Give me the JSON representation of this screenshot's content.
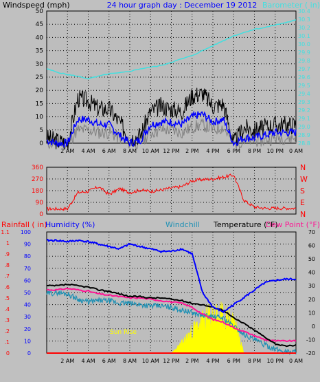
{
  "colors": {
    "background": "#c0c0c0",
    "plot_bg": "#bdbdbd",
    "grid": "#000000",
    "windspeed": "#000000",
    "wind_avg": "#0000ff",
    "wind_gust_low": "#808080",
    "barometer": "#40e0e0",
    "wind_dir": "#ff0000",
    "humidity": "#0000ff",
    "rainfall": "#ff0000",
    "temperature": "#000000",
    "windchill": "#1e90b4",
    "dew_point": "#ff1493",
    "solar": "#ffff00"
  },
  "top": {
    "left_title": "Windspeed (mph)",
    "center_title": "24 hour graph day : December 19 2012",
    "right_title": "Barometer ( in)",
    "left_ticks": [
      "0",
      "5",
      "10",
      "15",
      "20",
      "25",
      "30",
      "35",
      "40",
      "45",
      "50"
    ],
    "right_ticks": [
      "28.8",
      "28.9",
      "29.0",
      "29.1",
      "29.2",
      "29.3",
      "29.4",
      "29.5",
      "29.6",
      "29.7",
      "29.8",
      "29.9",
      "30.0",
      "30.1",
      "30.2",
      "30.3",
      "30.4"
    ],
    "x_ticks": [
      "2 AM",
      "4 AM",
      "6 AM",
      "8 AM",
      "10 AM",
      "12 PM",
      "2 PM",
      "4 PM",
      "6 PM",
      "8 PM",
      "10 PM",
      "0 AM"
    ]
  },
  "middle": {
    "left_ticks": [
      "0",
      "90",
      "180",
      "270",
      "360"
    ],
    "right_labels": [
      "N",
      "W",
      "S",
      "E",
      "N"
    ]
  },
  "bottom": {
    "rain_title": "Rainfall ( in)",
    "humidity_title": "Humidity (%)",
    "windchill_title": "Windchill",
    "temp_title": "Temperature (°F)",
    "dew_title": "Dew Point (°F)",
    "humidity_ticks": [
      "0",
      "10",
      "20",
      "30",
      "40",
      "50",
      "60",
      "70",
      "80",
      "90",
      "100"
    ],
    "rain_ticks": [
      "0",
      ".1",
      ".2",
      ".3",
      ".4",
      ".5",
      ".6",
      ".7",
      ".8",
      ".9",
      "1",
      "1.1"
    ],
    "temp_ticks": [
      "-20",
      "-10",
      "0",
      "10",
      "20",
      "30",
      "40",
      "50",
      "60",
      "70"
    ],
    "x_ticks": [
      "2 AM",
      "4 AM",
      "6 AM",
      "8 AM",
      "10 AM",
      "12 PM",
      "2 PM",
      "4 PM",
      "6 PM",
      "8 PM",
      "10 PM",
      "0 AM"
    ],
    "sunrise_label": "Sun Rise",
    "sunset_label": "Set"
  },
  "chart_data": [
    {
      "type": "line",
      "title": "24 hour graph day : December 19 2012",
      "xlabel": "",
      "x": [
        0,
        1,
        2,
        3,
        4,
        5,
        6,
        7,
        8,
        9,
        10,
        11,
        12,
        13,
        14,
        15,
        16,
        17,
        18,
        19,
        20,
        21,
        22,
        23,
        24
      ],
      "x_tick_labels": [
        "2 AM",
        "4 AM",
        "6 AM",
        "8 AM",
        "10 AM",
        "12 PM",
        "2 PM",
        "4 PM",
        "6 PM",
        "8 PM",
        "10 PM",
        "0 AM"
      ],
      "ylim": [
        0,
        50
      ],
      "y2lim": [
        28.8,
        30.4
      ],
      "series": [
        {
          "name": "Windspeed (mph)",
          "axis": "left",
          "values": [
            2,
            1,
            0,
            17,
            16,
            13,
            13,
            8,
            2,
            3,
            12,
            14,
            13,
            12,
            18,
            19,
            14,
            15,
            0,
            6,
            5,
            6,
            7,
            7,
            7
          ]
        },
        {
          "name": "",
          "axis": "left",
          "role": "average",
          "values": [
            1,
            0,
            0,
            9,
            9,
            7,
            7,
            3,
            0,
            1,
            7,
            8,
            8,
            7,
            10,
            11,
            8,
            9,
            0,
            2,
            2,
            3,
            4,
            4,
            4
          ]
        },
        {
          "name": "",
          "axis": "left",
          "role": "lull",
          "values": [
            0,
            0,
            0,
            5,
            5,
            4,
            4,
            2,
            0,
            0,
            4,
            5,
            5,
            4,
            6,
            7,
            5,
            6,
            0,
            1,
            1,
            1,
            2,
            2,
            2
          ]
        },
        {
          "name": "Barometer ( in)",
          "axis": "right",
          "values": [
            29.7,
            29.66,
            29.63,
            29.61,
            29.58,
            29.61,
            29.64,
            29.65,
            29.67,
            29.7,
            29.72,
            29.74,
            29.78,
            29.82,
            29.86,
            29.92,
            29.98,
            30.04,
            30.1,
            30.14,
            30.18,
            30.2,
            30.23,
            30.26,
            30.29
          ]
        }
      ]
    },
    {
      "type": "line",
      "title": "",
      "ylabel": "",
      "ylim": [
        0,
        360
      ],
      "x": [
        0,
        1,
        2,
        3,
        4,
        5,
        6,
        7,
        8,
        9,
        10,
        11,
        12,
        13,
        14,
        15,
        16,
        17,
        18,
        19,
        20,
        21,
        22,
        23,
        24
      ],
      "series": [
        {
          "name": "",
          "values": [
            40,
            40,
            40,
            165,
            175,
            210,
            150,
            195,
            165,
            185,
            175,
            185,
            200,
            210,
            255,
            265,
            270,
            285,
            300,
            105,
            55,
            45,
            45,
            45,
            45
          ]
        }
      ]
    },
    {
      "type": "line",
      "title": "",
      "x": [
        0,
        1,
        2,
        3,
        4,
        5,
        6,
        7,
        8,
        9,
        10,
        11,
        12,
        13,
        14,
        15,
        16,
        17,
        18,
        19,
        20,
        21,
        22,
        23,
        24
      ],
      "ylim_humidity": [
        0,
        100
      ],
      "ylim_rain": [
        0,
        1.1
      ],
      "ylim_temp": [
        -20,
        70
      ],
      "series": [
        {
          "name": "Humidity (%)",
          "axis": "humidity",
          "values": [
            93,
            93,
            92,
            93,
            92,
            90,
            88,
            86,
            90,
            88,
            86,
            84,
            84,
            86,
            82,
            50,
            38,
            34,
            40,
            46,
            52,
            58,
            60,
            61,
            61
          ]
        },
        {
          "name": "Rainfall ( in)",
          "axis": "rain",
          "values": [
            0,
            0,
            0,
            0,
            0,
            0,
            0,
            0,
            0,
            0,
            0,
            0,
            0,
            0,
            0,
            0,
            0,
            0,
            0,
            0,
            0,
            0,
            0,
            0,
            0
          ]
        },
        {
          "name": "Temperature (°F)",
          "axis": "temp",
          "values": [
            30,
            30,
            31,
            30,
            29,
            27,
            26,
            24,
            22,
            22,
            21,
            21,
            20,
            19,
            17,
            16,
            14,
            12,
            6,
            2,
            -3,
            -8,
            -13,
            -15,
            -14
          ]
        },
        {
          "name": "Windchill",
          "axis": "temp",
          "values": [
            24,
            25,
            24,
            20,
            18,
            19,
            19,
            17,
            17,
            16,
            15,
            15,
            14,
            12,
            10,
            8,
            7,
            6,
            0,
            -6,
            -10,
            -14,
            -17,
            -19,
            -19
          ]
        },
        {
          "name": "Dew Point (°F)",
          "axis": "temp",
          "values": [
            27,
            27,
            28,
            27,
            26,
            24,
            23,
            22,
            21,
            21,
            20,
            19,
            18,
            17,
            14,
            9,
            5,
            3,
            -1,
            -4,
            -7,
            -10,
            -11,
            -11,
            -11
          ]
        },
        {
          "name": "",
          "role": "solar",
          "axis": "humidity",
          "values": [
            0,
            0,
            0,
            0,
            0,
            0,
            0,
            0,
            0,
            0,
            0,
            0,
            0,
            8,
            18,
            27,
            32,
            30,
            28,
            0,
            0,
            0,
            0,
            0,
            0
          ]
        }
      ]
    }
  ]
}
